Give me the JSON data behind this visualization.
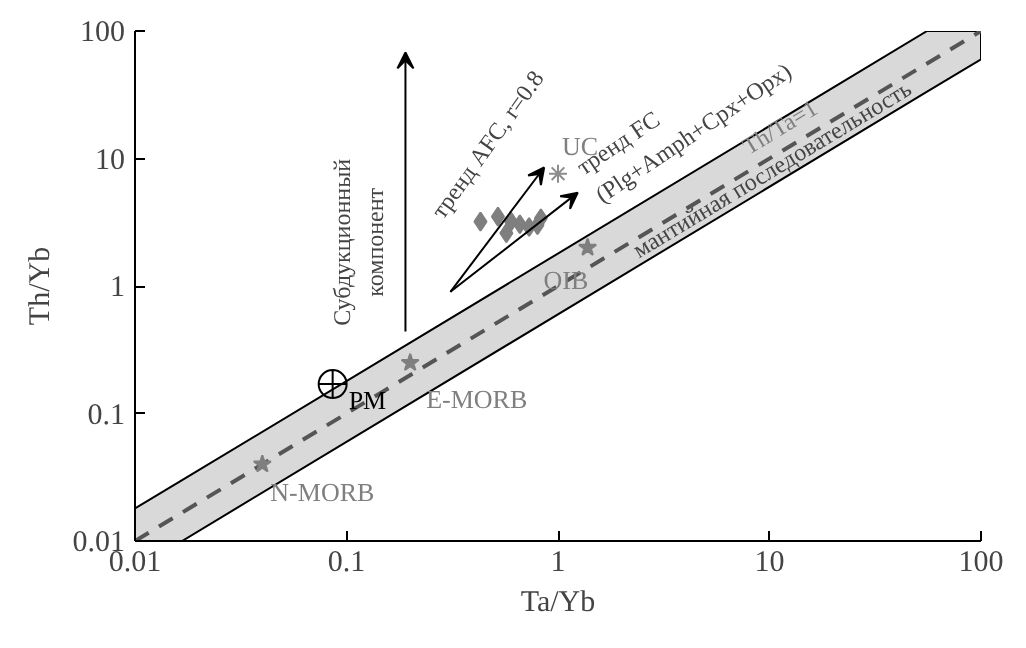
{
  "chart_data": {
    "type": "scatter",
    "xlabel": "Ta/Yb",
    "ylabel": "Th/Yb",
    "log": "xy",
    "xlim": [
      0.01,
      100
    ],
    "ylim": [
      0.01,
      100
    ],
    "xticks": [
      0.01,
      0.1,
      1,
      10,
      100
    ],
    "yticks": [
      0.01,
      0.1,
      1,
      10,
      100
    ],
    "grid": false,
    "series": [
      {
        "name": "Th/Ta=1",
        "type": "line",
        "line_style": "dashed",
        "color": "#555555",
        "x": [
          0.01,
          0.0167,
          55.6,
          100
        ],
        "values": [
          0.01,
          0.0167,
          55.6,
          100
        ],
        "lower": [
          0.01,
          0.01,
          33.4,
          60
        ],
        "upper": [
          0.018,
          0.03,
          100,
          100
        ]
      },
      {
        "marker": "diamond",
        "color": "#7f7f7f",
        "x": [
          0.43,
          0.52,
          0.6,
          0.66,
          0.57,
          0.73,
          0.8,
          0.83
        ],
        "values": [
          3.2,
          3.5,
          3.2,
          3.05,
          2.6,
          2.9,
          3.0,
          3.4
        ]
      },
      {
        "marker": "cross",
        "color": "#8c8c8c",
        "x": [
          1.0
        ],
        "values": [
          7.6
        ]
      },
      {
        "marker": "star",
        "color": "#7f7f7f",
        "x": [
          1.38,
          0.2,
          0.04
        ],
        "values": [
          2.0,
          0.25,
          0.04
        ]
      },
      {
        "marker": "circle",
        "color": "#000000",
        "x": [
          0.086
        ],
        "values": [
          0.17
        ]
      }
    ],
    "annotations": [
      {
        "text": "UC",
        "x": 1.0,
        "y": 7.6
      },
      {
        "text": "OIB",
        "x": 1.38,
        "y": 2.0
      },
      {
        "text": "E-MORB",
        "x": 0.2,
        "y": 0.25
      },
      {
        "text": "N-MORB",
        "x": 0.04,
        "y": 0.04
      },
      {
        "text": "PM",
        "x": 0.086,
        "y": 0.17
      },
      "Субдукционный\nкомпонент",
      "тренд AFC, r=0.8",
      "тренд FC\n(Plg+Amph+Cpx+Opx)",
      "мантийная последовательность"
    ]
  }
}
